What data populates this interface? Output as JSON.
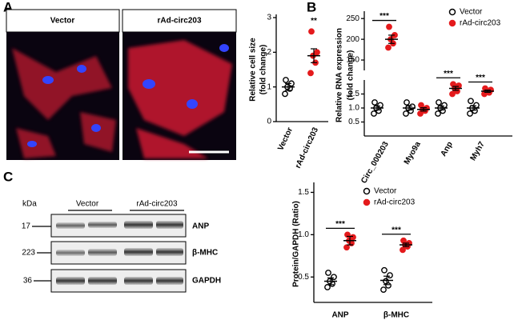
{
  "panel_labels": [
    "A",
    "B",
    "C"
  ],
  "images": {
    "labels": [
      "Vector",
      "rAd-circ203"
    ]
  },
  "blot": {
    "unit": "kDa",
    "groups": [
      "Vector",
      "rAd-circ203"
    ],
    "weights": [
      "17",
      "223",
      "36"
    ],
    "proteins": [
      "ANP",
      "β-MHC",
      "GAPDH"
    ]
  },
  "chart_data": [
    {
      "type": "dot",
      "ylabel": [
        "Relative cell size",
        "(fold change)"
      ],
      "categories": [
        "Vector",
        "rAd-circ203"
      ],
      "values": [
        [
          0.8,
          0.95,
          1.0,
          1.1,
          1.2
        ],
        [
          1.4,
          1.7,
          1.9,
          2.0,
          2.6
        ]
      ],
      "means": [
        1.0,
        1.9
      ],
      "errors": [
        0.1,
        0.2
      ],
      "colors": [
        "#000000",
        "#e41a1c"
      ],
      "filled": [
        false,
        true
      ],
      "significance": [
        null,
        "**"
      ],
      "ylim": [
        0,
        3
      ],
      "yticks": [
        0,
        1,
        2,
        3
      ]
    },
    {
      "type": "dot",
      "ylabel": [
        "Relative RNA expression",
        "(fold change)"
      ],
      "categories": [
        "Circ_000203",
        "Myo9a",
        "Anp",
        "Myh7"
      ],
      "series": [
        {
          "name": "Vector",
          "color": "#000000",
          "filled": false,
          "values": [
            [
              0.8,
              0.9,
              1.0,
              1.1,
              1.2
            ],
            [
              0.8,
              0.9,
              1.0,
              1.05,
              1.2
            ],
            [
              0.8,
              0.9,
              1.0,
              1.1,
              1.2
            ],
            [
              0.8,
              0.9,
              1.0,
              1.1,
              1.25
            ]
          ],
          "means": [
            1.0,
            1.0,
            1.0,
            1.0
          ],
          "errors": [
            0.07,
            0.07,
            0.07,
            0.08
          ]
        },
        {
          "name": "rAd-circ203",
          "color": "#e41a1c",
          "filled": true,
          "values": [
            [
              180,
              190,
              200,
              210,
              230
            ],
            [
              0.8,
              0.9,
              0.95,
              1.0,
              1.1
            ],
            [
              1.5,
              1.6,
              1.7,
              1.8,
              1.85
            ],
            [
              1.5,
              1.55,
              1.6,
              1.65,
              1.7
            ]
          ],
          "means": [
            200,
            0.95,
            1.7,
            1.6
          ],
          "errors": [
            10,
            0.06,
            0.07,
            0.04
          ]
        }
      ],
      "significance": [
        "***",
        null,
        "***",
        "***"
      ],
      "ylim": [
        0,
        2
      ],
      "ylim_upper": [
        125,
        260
      ],
      "yticks": [
        0.5,
        {
          "value": 1,
          "label": "1.0"
        },
        1.5,
        150,
        200,
        250
      ]
    },
    {
      "type": "dot",
      "ylabel": [
        "Protein/GAPDH (Ratio)"
      ],
      "categories": [
        "ANP",
        "β-MHC"
      ],
      "series": [
        {
          "name": "Vector",
          "color": "#000000",
          "filled": false,
          "values": [
            [
              0.38,
              0.42,
              0.45,
              0.5,
              0.55
            ],
            [
              0.35,
              0.4,
              0.45,
              0.52,
              0.58
            ]
          ],
          "means": [
            0.45,
            0.46
          ],
          "errors": [
            0.04,
            0.05
          ]
        },
        {
          "name": "rAd-circ203",
          "color": "#e41a1c",
          "filled": true,
          "values": [
            [
              0.85,
              0.9,
              0.93,
              0.97,
              1.0
            ],
            [
              0.82,
              0.86,
              0.88,
              0.9,
              0.93
            ]
          ],
          "means": [
            0.93,
            0.88
          ],
          "errors": [
            0.05,
            0.02
          ]
        }
      ],
      "significance": [
        "***",
        "***"
      ],
      "ylim": [
        0.2,
        1.58
      ],
      "yticks": [
        0.5,
        {
          "value": 1,
          "label": "1.0"
        },
        1.5
      ]
    }
  ]
}
